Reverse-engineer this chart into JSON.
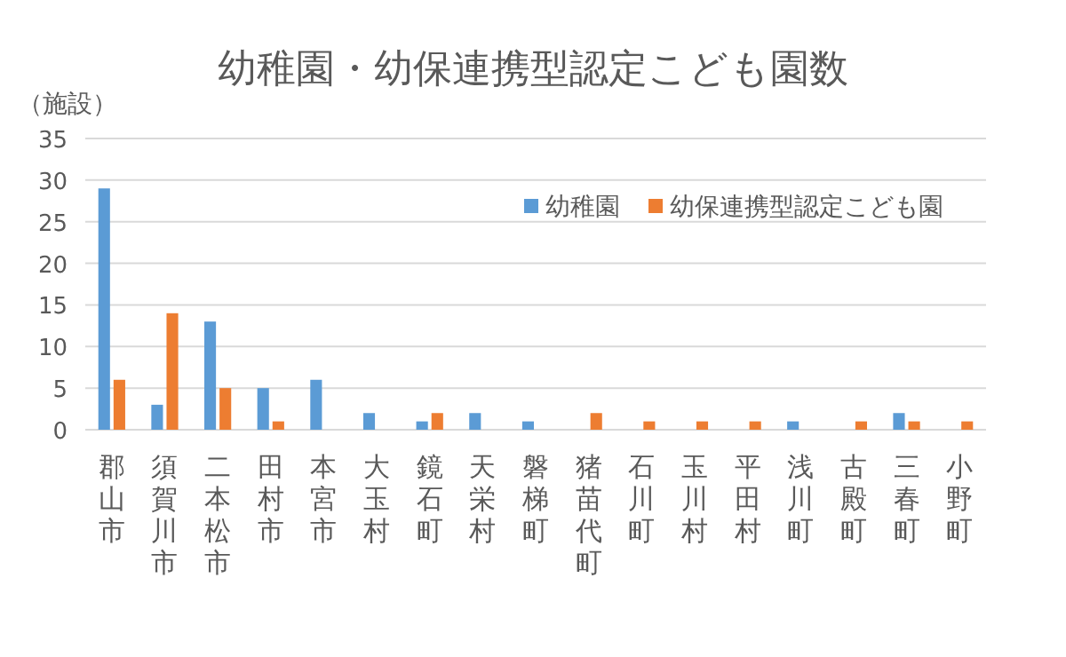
{
  "chart_data": {
    "type": "bar",
    "title": "幼稚園・幼保連携型認定こども園数",
    "ylabel": "（施設）",
    "categories": [
      "郡山市",
      "須賀川市",
      "二本松市",
      "田村市",
      "本宮市",
      "大玉村",
      "鏡石町",
      "天栄村",
      "磐梯町",
      "猪苗代町",
      "石川町",
      "玉川村",
      "平田村",
      "浅川町",
      "古殿町",
      "三春町",
      "小野町"
    ],
    "series": [
      {
        "name": "幼稚園",
        "color": "#5b9bd5",
        "values": [
          29,
          3,
          13,
          5,
          6,
          2,
          1,
          2,
          1,
          0,
          0,
          0,
          0,
          1,
          0,
          2,
          0
        ]
      },
      {
        "name": "幼保連携型認定こども園",
        "color": "#ed7d31",
        "values": [
          6,
          14,
          5,
          1,
          0,
          0,
          2,
          0,
          0,
          2,
          1,
          1,
          1,
          0,
          1,
          1,
          1
        ]
      }
    ],
    "ylim": [
      0,
      35
    ],
    "yticks": [
      0,
      5,
      10,
      15,
      20,
      25,
      30,
      35
    ],
    "grid": "y",
    "legend": "top right"
  }
}
